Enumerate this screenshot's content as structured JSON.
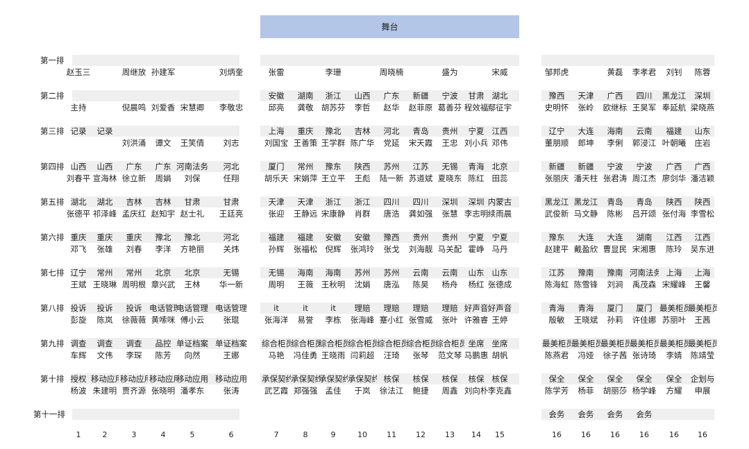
{
  "stage": "舞台",
  "columns": [
    "1",
    "2",
    "3",
    "4",
    "5",
    "6",
    "7",
    "8",
    "9",
    "10",
    "11",
    "12",
    "13",
    "14",
    "15",
    "16",
    "16",
    "16",
    "16",
    "16",
    "16"
  ],
  "rows": [
    {
      "label": "第一排",
      "units": [],
      "names": [
        "赵玉三",
        "",
        "周继放",
        "孙建军",
        "",
        "刘炳奎",
        "张雷",
        "",
        "李珊",
        "",
        "周晓楠",
        "",
        "盛为",
        "",
        "宋威",
        "邹邦虎",
        "",
        "黄磊",
        "李孝君",
        "刘钊",
        "陈蓉"
      ]
    },
    {
      "label": "第二排",
      "units": [
        "",
        "",
        "",
        "",
        "",
        "",
        "安徽",
        "湖南",
        "浙江",
        "山西",
        "广东",
        "新疆",
        "宁波",
        "甘肃",
        "湖北",
        "豫西",
        "天津",
        "广西",
        "四川",
        "黑龙江",
        "深圳"
      ],
      "names": [
        "主持",
        "",
        "倪晨鸣",
        "刘爱香",
        "宋慧卿",
        "李敬忠",
        "邱亮",
        "龚敬",
        "胡苏芬",
        "李哲",
        "赵华",
        "赵菲原",
        "葛善芬",
        "程效福",
        "鄢征宇",
        "史明怀",
        "张岭",
        "欧继标",
        "王昊军",
        "奉延航",
        "梁晓燕"
      ]
    },
    {
      "label": "第三排",
      "units": [
        "记录",
        "记录",
        "",
        "",
        "",
        "",
        "上海",
        "重庆",
        "豫北",
        "吉林",
        "河北",
        "青岛",
        "贵州",
        "宁夏",
        "江西",
        "辽宁",
        "大连",
        "海南",
        "云南",
        "福建",
        "山东"
      ],
      "names": [
        "",
        "",
        "刘洪涌",
        "谭文",
        "王笑倩",
        "刘志",
        "刘国宝",
        "王善策",
        "王学群",
        "陈广华",
        "党延",
        "宋天霞",
        "王忠",
        "刘小兵",
        "邓伟",
        "董朋顺",
        "郎坤",
        "李俐",
        "郭浸江",
        "叶朝曦",
        "庄岩"
      ]
    },
    {
      "label": "第四排",
      "units": [
        "山西",
        "山西",
        "广东",
        "广东",
        "河南法务",
        "河北",
        "厦门",
        "常州",
        "豫东",
        "陕西",
        "苏州",
        "江苏",
        "无锡",
        "青海",
        "北京",
        "新疆",
        "新疆",
        "宁波",
        "宁波",
        "广西",
        "广西"
      ],
      "names": [
        "刘春平",
        "宣海林",
        "徐立新",
        "周娟",
        "刘保",
        "任翔",
        "胡乐天",
        "宋娟萍",
        "王立平",
        "王彪",
        "陆一新",
        "苏道斌",
        "夏晓东",
        "陈红",
        "田蕊",
        "张丽庆",
        "潘天柱",
        "张君涛",
        "周江杰",
        "廖剑华",
        "潘洁颖"
      ]
    },
    {
      "label": "第五排",
      "units": [
        "湖北",
        "湖北",
        "吉林",
        "吉林",
        "甘肃",
        "甘肃",
        "天津",
        "天津",
        "浙江",
        "浙江",
        "四川",
        "四川",
        "深圳",
        "深圳",
        "内蒙古",
        "黑龙江",
        "黑龙江",
        "青岛",
        "青岛",
        "陕西",
        "陕西"
      ],
      "names": [
        "张德平",
        "祁泽峰",
        "孟庆红",
        "赵知宇",
        "赵士礼",
        "王廷亮",
        "张迎",
        "王静远",
        "宋康静",
        "肖群",
        "唐浩",
        "龚如强",
        "张慧",
        "李志明",
        "续雨晨",
        "武俊新",
        "马文静",
        "陈彬",
        "吕开颂",
        "张付海",
        "李雪松"
      ]
    },
    {
      "label": "第六排",
      "units": [
        "重庆",
        "重庆",
        "重庆",
        "豫北",
        "豫北",
        "河北",
        "福建",
        "福建",
        "安徽",
        "安徽",
        "豫西",
        "贵州",
        "贵州",
        "宁夏",
        "宁夏",
        "豫东",
        "大连",
        "大连",
        "湖南",
        "江西",
        "江西"
      ],
      "names": [
        "邓飞",
        "张雄",
        "刘春",
        "李洋",
        "方艳丽",
        "关炜",
        "孙辉",
        "张福松",
        "倪辉",
        "张鸿玲",
        "张戈",
        "刘海靓",
        "马关配",
        "霍峥",
        "马丹",
        "赵建平",
        "戴盈欣",
        "曹显民",
        "宋湘惠",
        "陈玲",
        "吴东进"
      ]
    },
    {
      "label": "第七排",
      "units": [
        "辽宁",
        "常州",
        "常州",
        "北京",
        "北京",
        "无锡",
        "无锡",
        "海南",
        "海南",
        "苏州",
        "苏州",
        "云南",
        "云南",
        "山东",
        "山东",
        "江苏",
        "豫南",
        "豫南",
        "河南法务",
        "上海",
        "上海"
      ],
      "names": [
        "王斌",
        "王晓琳",
        "周明根",
        "章兴武",
        "王林",
        "华一新",
        "周明",
        "王薇",
        "王秋明",
        "沈娟",
        "唐泓",
        "陈昊",
        "杨舟",
        "杨红",
        "张德成",
        "陈海虹",
        "陈雪锋",
        "刘涧",
        "禹茂森",
        "宋耀峰",
        "王馨"
      ]
    },
    {
      "label": "第八排",
      "units": [
        "投诉",
        "投诉",
        "投诉",
        "电话管理",
        "电话管理",
        "电话管理",
        "it",
        "it",
        "it",
        "理赔",
        "理赔",
        "理赔",
        "理赔",
        "好声音",
        "好声音",
        "青海",
        "青海",
        "厦门",
        "厦门",
        "最美柜员",
        "最美柜员"
      ],
      "names": [
        "彭旋",
        "陈岚",
        "徐薇薇",
        "黄嗦咪",
        "傅小云",
        "张琨",
        "张海洋",
        "易誉",
        "李栋",
        "张海峰",
        "蹇小红",
        "张雪威",
        "张叶",
        "许雅睿",
        "王婷",
        "殷敏",
        "王晓斌",
        "孙莉",
        "许佳娜",
        "苏丽叶",
        "王茜"
      ]
    },
    {
      "label": "第九排",
      "units": [
        "调查",
        "调查",
        "调查",
        "品控",
        "单证档案",
        "单证档案",
        "综合柜员",
        "综合柜员",
        "综合柜员",
        "综合柜员",
        "综合柜员",
        "综合柜员",
        "综合柜员",
        "坐席",
        "坐席",
        "最美柜员",
        "最美柜员",
        "最美柜员",
        "最美柜员",
        "最美柜员",
        "最美柜员"
      ],
      "names": [
        "车辉",
        "文伟",
        "李琛",
        "陈芳",
        "向然",
        "王娜",
        "马艳",
        "冯佳勇",
        "王晓雨",
        "闫莉超",
        "汪琦",
        "张琴",
        "范文琴",
        "马鹏惠",
        "胡帆",
        "陈燕君",
        "冯娅",
        "徐子茜",
        "张诗琦",
        "李婧",
        "陈靖莹"
      ]
    },
    {
      "label": "第十排",
      "units": [
        "授权",
        "移动应用",
        "移动应用",
        "移动应用",
        "移动应用",
        "移动应用",
        "承保契约",
        "承保契约",
        "承保契约",
        "承保契约",
        "核保",
        "核保",
        "核保",
        "核保",
        "核保",
        "保全",
        "保全",
        "保全",
        "保全",
        "保全",
        "企划与"
      ],
      "names": [
        "杨波",
        "朱建明",
        "贾齐源",
        "张晓明",
        "潘孝东",
        "张涛",
        "武艺霞",
        "郑强强",
        "孟佳",
        "于岚",
        "徐法江",
        "鲍捷",
        "周鑫",
        "刘向朴",
        "李克鑫",
        "陈学芳",
        "杨菲",
        "胡丽莎",
        "杨学峰",
        "方耀",
        "申展"
      ]
    },
    {
      "label": "第十一排",
      "units": [],
      "names": [
        "",
        "",
        "",
        "",
        "",
        "",
        "",
        "",
        "",
        "",
        "",
        "",
        "",
        "",
        "",
        "会务",
        "会务",
        "会务",
        "会务",
        "",
        ""
      ]
    }
  ]
}
